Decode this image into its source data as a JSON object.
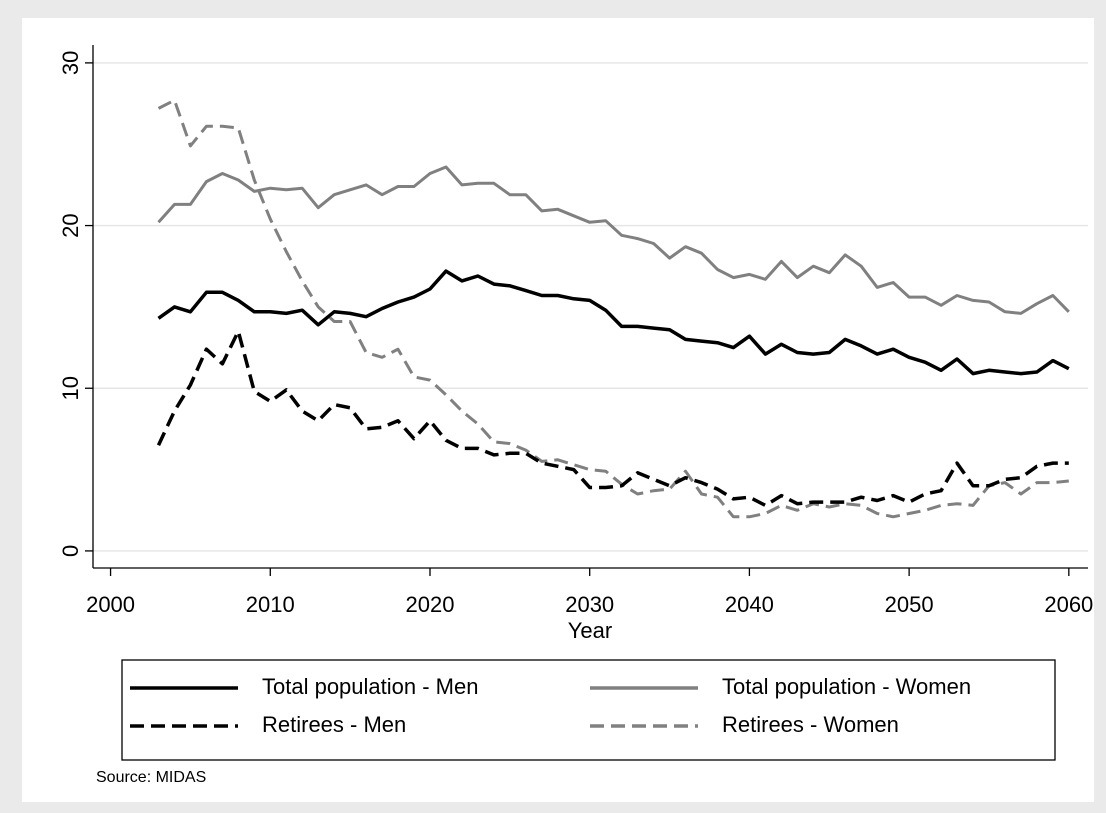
{
  "chart_data": {
    "type": "line",
    "x_label": "Year",
    "note": "Source: MIDAS",
    "x": [
      2003,
      2004,
      2005,
      2006,
      2007,
      2008,
      2009,
      2010,
      2011,
      2012,
      2013,
      2014,
      2015,
      2016,
      2017,
      2018,
      2019,
      2020,
      2021,
      2022,
      2023,
      2024,
      2025,
      2026,
      2027,
      2028,
      2029,
      2030,
      2031,
      2032,
      2033,
      2034,
      2035,
      2036,
      2037,
      2038,
      2039,
      2040,
      2041,
      2042,
      2043,
      2044,
      2045,
      2046,
      2047,
      2048,
      2049,
      2050,
      2051,
      2052,
      2053,
      2054,
      2055,
      2056,
      2057,
      2058,
      2059,
      2060
    ],
    "series": [
      {
        "name": "Total population - Men",
        "color": "#000000",
        "dash": false,
        "values": [
          14.3,
          15.0,
          14.7,
          15.9,
          15.9,
          15.4,
          14.7,
          14.7,
          14.6,
          14.8,
          13.9,
          14.7,
          14.6,
          14.4,
          14.9,
          15.3,
          15.6,
          16.1,
          17.2,
          16.6,
          16.9,
          16.4,
          16.3,
          16.0,
          15.7,
          15.7,
          15.5,
          15.4,
          14.8,
          13.8,
          13.8,
          13.7,
          13.6,
          13.0,
          12.9,
          12.8,
          12.5,
          13.2,
          12.1,
          12.7,
          12.2,
          12.1,
          12.2,
          13.0,
          12.6,
          12.1,
          12.4,
          11.9,
          11.6,
          11.1,
          11.8,
          10.9,
          11.1,
          11.0,
          10.9,
          11.0,
          11.7,
          11.2
        ]
      },
      {
        "name": "Total population - Women",
        "color": "#808080",
        "dash": false,
        "values": [
          20.2,
          21.3,
          21.3,
          22.7,
          23.2,
          22.8,
          22.1,
          22.3,
          22.2,
          22.3,
          21.1,
          21.9,
          22.2,
          22.5,
          21.9,
          22.4,
          22.4,
          23.2,
          23.6,
          22.5,
          22.6,
          22.6,
          21.9,
          21.9,
          20.9,
          21.0,
          20.6,
          20.2,
          20.3,
          19.4,
          19.2,
          18.9,
          18.0,
          18.7,
          18.3,
          17.3,
          16.8,
          17.0,
          16.7,
          17.8,
          16.8,
          17.5,
          17.1,
          18.2,
          17.5,
          16.2,
          16.5,
          15.6,
          15.6,
          15.1,
          15.7,
          15.4,
          15.3,
          14.7,
          14.6,
          15.2,
          15.7,
          14.7
        ]
      },
      {
        "name": "Retirees - Men",
        "color": "#000000",
        "dash": true,
        "values": [
          6.5,
          8.6,
          10.2,
          12.4,
          11.5,
          13.5,
          9.8,
          9.2,
          9.9,
          8.6,
          8.0,
          9.0,
          8.8,
          7.5,
          7.6,
          8.0,
          6.9,
          8.0,
          6.8,
          6.3,
          6.3,
          5.9,
          6.0,
          6.0,
          5.4,
          5.2,
          5.0,
          3.9,
          3.9,
          4.0,
          4.8,
          4.4,
          4.0,
          4.5,
          4.2,
          3.8,
          3.2,
          3.3,
          2.8,
          3.4,
          2.9,
          3.0,
          3.0,
          3.0,
          3.3,
          3.1,
          3.4,
          3.0,
          3.5,
          3.7,
          5.4,
          4.0,
          4.0,
          4.4,
          4.5,
          5.2,
          5.4,
          5.4
        ]
      },
      {
        "name": "Retirees - Women",
        "color": "#808080",
        "dash": true,
        "values": [
          27.2,
          27.7,
          24.9,
          26.1,
          26.1,
          26.0,
          22.8,
          20.4,
          18.4,
          16.6,
          15.0,
          14.1,
          14.1,
          12.2,
          11.9,
          12.4,
          10.7,
          10.5,
          9.6,
          8.6,
          7.8,
          6.7,
          6.6,
          6.2,
          5.5,
          5.6,
          5.3,
          5.0,
          4.9,
          4.1,
          3.5,
          3.7,
          3.8,
          4.9,
          3.5,
          3.3,
          2.1,
          2.1,
          2.3,
          2.8,
          2.5,
          2.9,
          2.7,
          2.9,
          2.8,
          2.3,
          2.1,
          2.3,
          2.5,
          2.8,
          2.9,
          2.8,
          4.0,
          4.2,
          3.5,
          4.2,
          4.2,
          4.3
        ]
      }
    ],
    "xlim": [
      1998.9,
      2061.2
    ],
    "xticks": [
      2000,
      2010,
      2020,
      2030,
      2040,
      2050,
      2060
    ],
    "ylim": [
      -1.05,
      31.1
    ],
    "yticks": [
      0,
      10,
      20,
      30
    ],
    "grid": true,
    "legend": "bottom"
  }
}
